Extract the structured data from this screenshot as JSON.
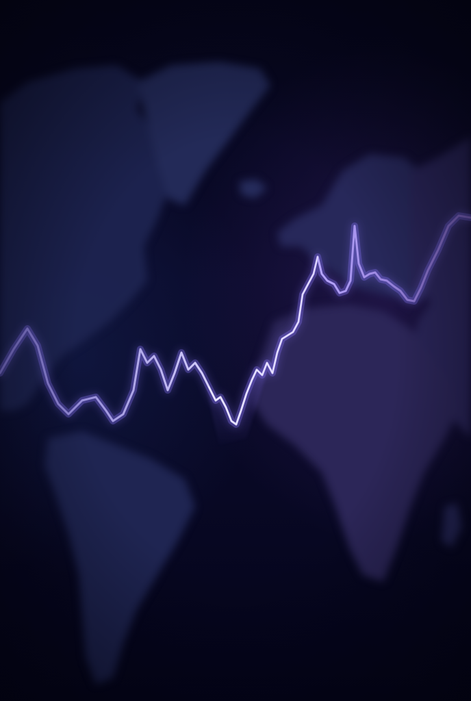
{
  "scene": {
    "subject": "world-map-with-glowing-trend-line",
    "colors": {
      "background": "#05051a",
      "land_west": "#1f2552",
      "land_east": "#2b2658",
      "line_glow": "#9a8cff",
      "line_core": "#e6e2ff",
      "line_fade": "#8a6cc8"
    }
  }
}
